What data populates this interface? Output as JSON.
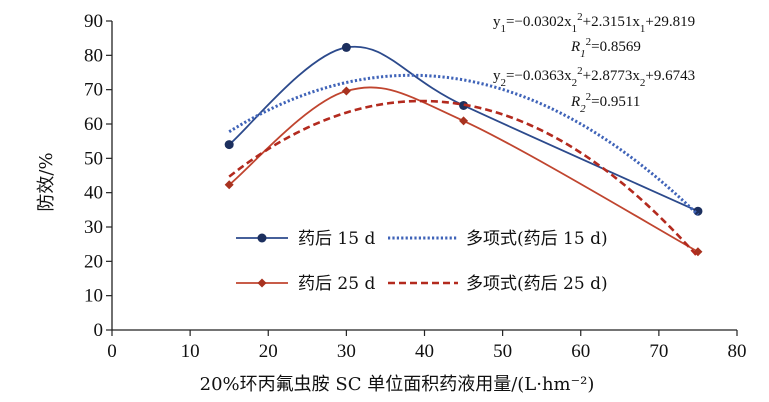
{
  "chart_data": {
    "type": "line",
    "xlabel": "20%环丙氟虫胺 SC 单位面积药液用量/(L·hm⁻²)",
    "ylabel": "防效/%",
    "xlim": [
      0,
      80
    ],
    "ylim": [
      0,
      90
    ],
    "xticks": [
      "0",
      "10",
      "20",
      "30",
      "40",
      "50",
      "60",
      "70",
      "80"
    ],
    "yticks": [
      "0",
      "10",
      "20",
      "30",
      "40",
      "50",
      "60",
      "70",
      "80",
      "90"
    ],
    "grid": false,
    "legend_position": "bottom-center",
    "series": [
      {
        "name": "药后 15 d",
        "kind": "smoothed-line-markers",
        "marker": "circle",
        "color": "#2c4a8c",
        "x": [
          15,
          30,
          45,
          75
        ],
        "y": [
          54.0,
          82.3,
          65.4,
          34.6
        ]
      },
      {
        "name": "药后 25 d",
        "kind": "smoothed-line-markers",
        "marker": "diamond",
        "color": "#c0452f",
        "x": [
          15,
          30,
          45,
          75
        ],
        "y": [
          42.3,
          69.6,
          60.9,
          22.8
        ]
      },
      {
        "name": "多项式(药后 15 d)",
        "kind": "trendline",
        "style": "dotted",
        "color": "#3f63b8",
        "coefficients": {
          "a": -0.0302,
          "b": 2.3151,
          "c": 29.819
        },
        "x_range": [
          15,
          75
        ]
      },
      {
        "name": "多项式(药后 25 d)",
        "kind": "trendline",
        "style": "dashed",
        "color": "#b32a1e",
        "coefficients": {
          "a": -0.0363,
          "b": 2.8773,
          "c": 9.6743
        },
        "x_range": [
          15,
          75
        ]
      }
    ],
    "annotations": {
      "eq1": {
        "y_label": "y",
        "sub": "1",
        "rest_a": "=−0.0302x",
        "x_sub": "1",
        "sup": "2",
        "rest_b": "+2.3151x",
        "x_sub2": "1",
        "rest_c": "+29.819"
      },
      "r1": {
        "label": "R",
        "sub": "1",
        "sup": "2",
        "value": "=0.8569"
      },
      "eq2": {
        "y_label": "y",
        "sub": "2",
        "rest_a": "=−0.0363x",
        "x_sub": "2",
        "sup": "2",
        "rest_b": "+2.8773x",
        "x_sub2": "2",
        "rest_c": "+9.6743"
      },
      "r2": {
        "label": "R",
        "sub": "2",
        "sup": "2",
        "value": "=0.9511"
      }
    }
  }
}
